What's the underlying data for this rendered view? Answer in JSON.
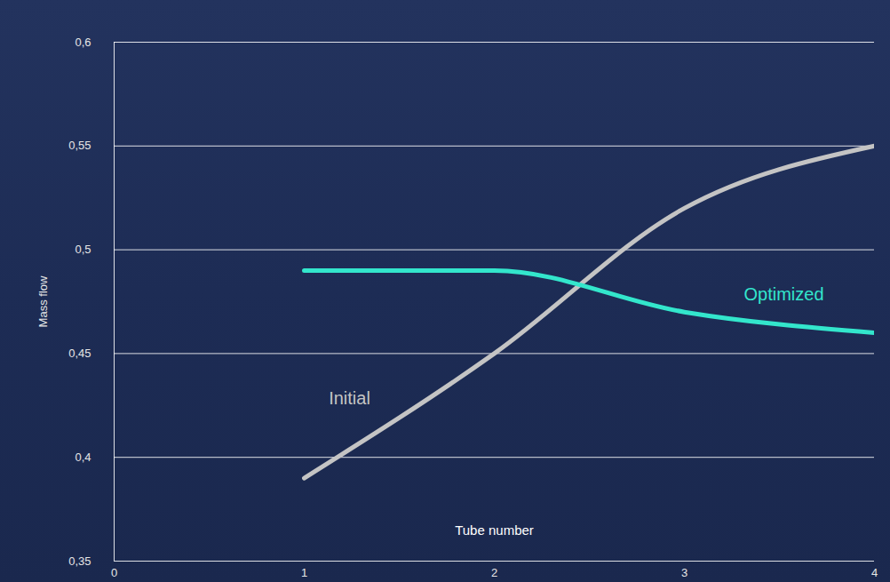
{
  "chart_data": {
    "type": "line",
    "x_label": "Tube number",
    "y_label": "Mass flow",
    "x": [
      1,
      2,
      3,
      4
    ],
    "series": [
      {
        "name": "Initial",
        "color": "#c4c4c4",
        "values": [
          0.39,
          0.45,
          0.52,
          0.55
        ]
      },
      {
        "name": "Optimized",
        "color": "#33e6cc",
        "values": [
          0.49,
          0.49,
          0.47,
          0.46
        ]
      }
    ],
    "xlim": [
      0,
      4
    ],
    "xticks": [
      0,
      1,
      2,
      3,
      4
    ],
    "ylim": [
      0.35,
      0.6
    ],
    "yticks": [
      {
        "value": 0.35,
        "label": "0,35"
      },
      {
        "value": 0.4,
        "label": "0,4"
      },
      {
        "value": 0.45,
        "label": "0,45"
      },
      {
        "value": 0.5,
        "label": "0,5"
      },
      {
        "value": 0.55,
        "label": "0,55"
      },
      {
        "value": 0.6,
        "label": "0,6"
      }
    ],
    "grid": true
  }
}
